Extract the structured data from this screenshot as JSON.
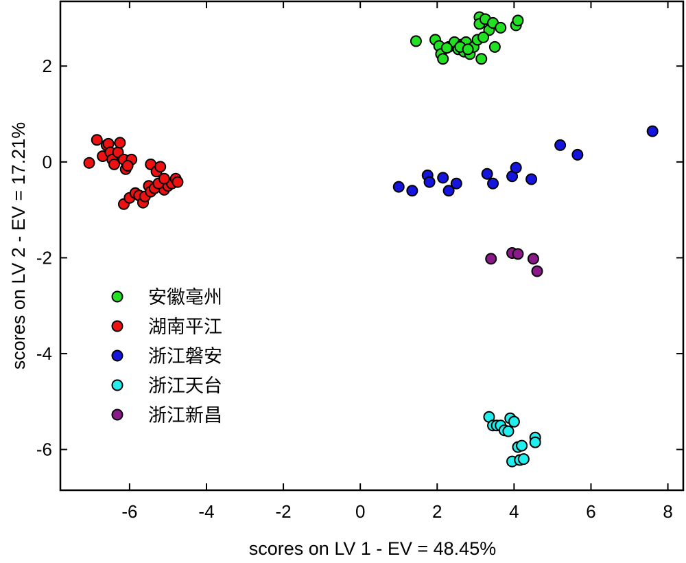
{
  "chart_data": {
    "type": "scatter",
    "xlabel": "scores on LV 1 - EV = 48.45%",
    "ylabel": "scores on LV 2 - EV = 17.21%",
    "xlim": [
      -7.8,
      8.4
    ],
    "ylim": [
      -6.85,
      3.35
    ],
    "xticks": [
      -6,
      -4,
      -2,
      0,
      2,
      4,
      6,
      8
    ],
    "yticks": [
      -6,
      -4,
      -2,
      0,
      2
    ],
    "grid": false,
    "legend_position": "middle-left",
    "series": [
      {
        "name": "安徽亳州",
        "color": "#22e022",
        "points": [
          [
            1.45,
            2.52
          ],
          [
            1.95,
            2.55
          ],
          [
            2.05,
            2.42
          ],
          [
            2.1,
            2.25
          ],
          [
            2.15,
            2.15
          ],
          [
            2.3,
            2.4
          ],
          [
            2.45,
            2.5
          ],
          [
            2.55,
            2.35
          ],
          [
            2.65,
            2.45
          ],
          [
            2.7,
            2.3
          ],
          [
            2.75,
            2.5
          ],
          [
            2.85,
            2.25
          ],
          [
            2.95,
            2.4
          ],
          [
            3.05,
            2.55
          ],
          [
            3.1,
            3.02
          ],
          [
            3.1,
            2.88
          ],
          [
            3.25,
            2.98
          ],
          [
            3.35,
            2.75
          ],
          [
            3.45,
            2.9
          ],
          [
            3.5,
            2.4
          ],
          [
            3.65,
            2.8
          ],
          [
            4.05,
            2.85
          ],
          [
            4.1,
            2.95
          ],
          [
            3.15,
            2.15
          ],
          [
            2.6,
            2.4
          ],
          [
            2.25,
            2.38
          ],
          [
            3.2,
            2.6
          ],
          [
            2.8,
            2.35
          ]
        ]
      },
      {
        "name": "湖南平江",
        "color": "#ee1111",
        "points": [
          [
            -7.05,
            -0.02
          ],
          [
            -6.85,
            0.46
          ],
          [
            -6.7,
            0.12
          ],
          [
            -6.6,
            0.35
          ],
          [
            -6.55,
            0.38
          ],
          [
            -6.5,
            0.2
          ],
          [
            -6.45,
            0.05
          ],
          [
            -6.4,
            -0.05
          ],
          [
            -6.3,
            0.2
          ],
          [
            -6.25,
            0.4
          ],
          [
            -6.15,
            0.05
          ],
          [
            -6.1,
            -0.15
          ],
          [
            -5.95,
            0.05
          ],
          [
            -6.05,
            -0.08
          ],
          [
            -6.15,
            -0.88
          ],
          [
            -6.0,
            -0.75
          ],
          [
            -5.85,
            -0.65
          ],
          [
            -5.75,
            -0.7
          ],
          [
            -5.65,
            -0.85
          ],
          [
            -5.6,
            -0.72
          ],
          [
            -5.5,
            -0.5
          ],
          [
            -5.45,
            -0.62
          ],
          [
            -5.35,
            -0.55
          ],
          [
            -5.45,
            -0.05
          ],
          [
            -5.3,
            -0.2
          ],
          [
            -5.2,
            -0.1
          ],
          [
            -5.15,
            -0.48
          ],
          [
            -5.1,
            -0.58
          ],
          [
            -5.0,
            -0.5
          ],
          [
            -4.9,
            -0.45
          ],
          [
            -4.8,
            -0.35
          ],
          [
            -4.75,
            -0.42
          ],
          [
            -5.25,
            -0.45
          ],
          [
            -5.1,
            -0.35
          ]
        ]
      },
      {
        "name": "浙江磐安",
        "color": "#1515dd",
        "points": [
          [
            1.0,
            -0.52
          ],
          [
            1.35,
            -0.6
          ],
          [
            1.75,
            -0.28
          ],
          [
            1.8,
            -0.42
          ],
          [
            2.15,
            -0.33
          ],
          [
            2.3,
            -0.6
          ],
          [
            2.5,
            -0.45
          ],
          [
            3.3,
            -0.25
          ],
          [
            3.45,
            -0.45
          ],
          [
            3.95,
            -0.3
          ],
          [
            4.05,
            -0.12
          ],
          [
            4.45,
            -0.36
          ],
          [
            5.2,
            0.35
          ],
          [
            5.65,
            0.15
          ],
          [
            7.6,
            0.64
          ]
        ]
      },
      {
        "name": "浙江天台",
        "color": "#22eeee",
        "points": [
          [
            3.35,
            -5.32
          ],
          [
            3.45,
            -5.5
          ],
          [
            3.55,
            -5.5
          ],
          [
            3.65,
            -5.5
          ],
          [
            3.75,
            -5.6
          ],
          [
            3.85,
            -5.62
          ],
          [
            3.9,
            -5.35
          ],
          [
            4.0,
            -5.42
          ],
          [
            3.95,
            -6.25
          ],
          [
            4.1,
            -5.95
          ],
          [
            4.2,
            -5.92
          ],
          [
            4.15,
            -6.22
          ],
          [
            4.25,
            -6.2
          ],
          [
            4.55,
            -5.75
          ],
          [
            4.55,
            -5.85
          ]
        ]
      },
      {
        "name": "浙江新昌",
        "color": "#8a1a8a",
        "points": [
          [
            3.4,
            -2.02
          ],
          [
            3.95,
            -1.9
          ],
          [
            4.1,
            -1.92
          ],
          [
            4.5,
            -2.02
          ],
          [
            4.6,
            -2.28
          ]
        ]
      }
    ]
  }
}
